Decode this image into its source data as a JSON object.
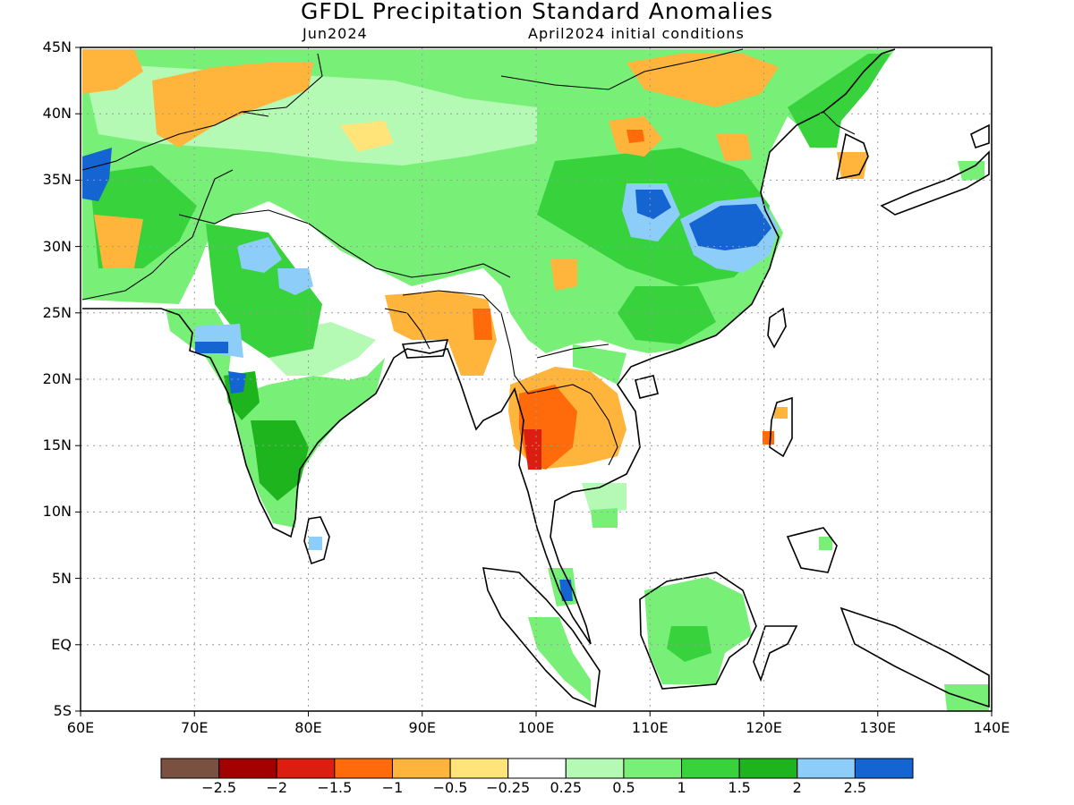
{
  "title": "GFDL Precipitation Standard Anomalies",
  "subtitle_left": "Jun2024",
  "subtitle_right": "April2024 initial conditions",
  "axes": {
    "lat_labels": [
      "45N",
      "40N",
      "35N",
      "30N",
      "25N",
      "20N",
      "15N",
      "10N",
      "5N",
      "EQ",
      "5S"
    ],
    "lat_values": [
      45,
      40,
      35,
      30,
      25,
      20,
      15,
      10,
      5,
      0,
      -5
    ],
    "lon_labels": [
      "60E",
      "70E",
      "80E",
      "90E",
      "100E",
      "110E",
      "120E",
      "130E",
      "140E"
    ],
    "lon_values": [
      60,
      70,
      80,
      90,
      100,
      110,
      120,
      130,
      140
    ],
    "lon_range": [
      60,
      140
    ],
    "lat_range": [
      -5,
      45
    ],
    "grid": "dotted"
  },
  "colorbar": {
    "colors": [
      "#7a5040",
      "#a30000",
      "#dc1e10",
      "#ff6a0a",
      "#ffb43c",
      "#ffe47a",
      "#ffffff",
      "#b4fab4",
      "#78f078",
      "#37d23c",
      "#1eb41e",
      "#8ccdfa",
      "#1464d2"
    ],
    "labels": [
      "−2.5",
      "−2",
      "−1.5",
      "−1",
      "−0.5",
      "−0.25",
      "0.25",
      "0.5",
      "1",
      "1.5",
      "2",
      "2.5"
    ]
  },
  "palette": {
    "pos_light": "#b4fab4",
    "pos_med": "#78f078",
    "pos_strong": "#37d23c",
    "pos_vstrong": "#1eb41e",
    "pos_lightblue": "#8ccdfa",
    "pos_blue": "#1464d2",
    "neg_yellow": "#ffe47a",
    "neg_orange_light": "#ffb43c",
    "neg_orange": "#ff6a0a",
    "neg_red": "#dc1e10",
    "neg_darkred": "#a30000"
  }
}
